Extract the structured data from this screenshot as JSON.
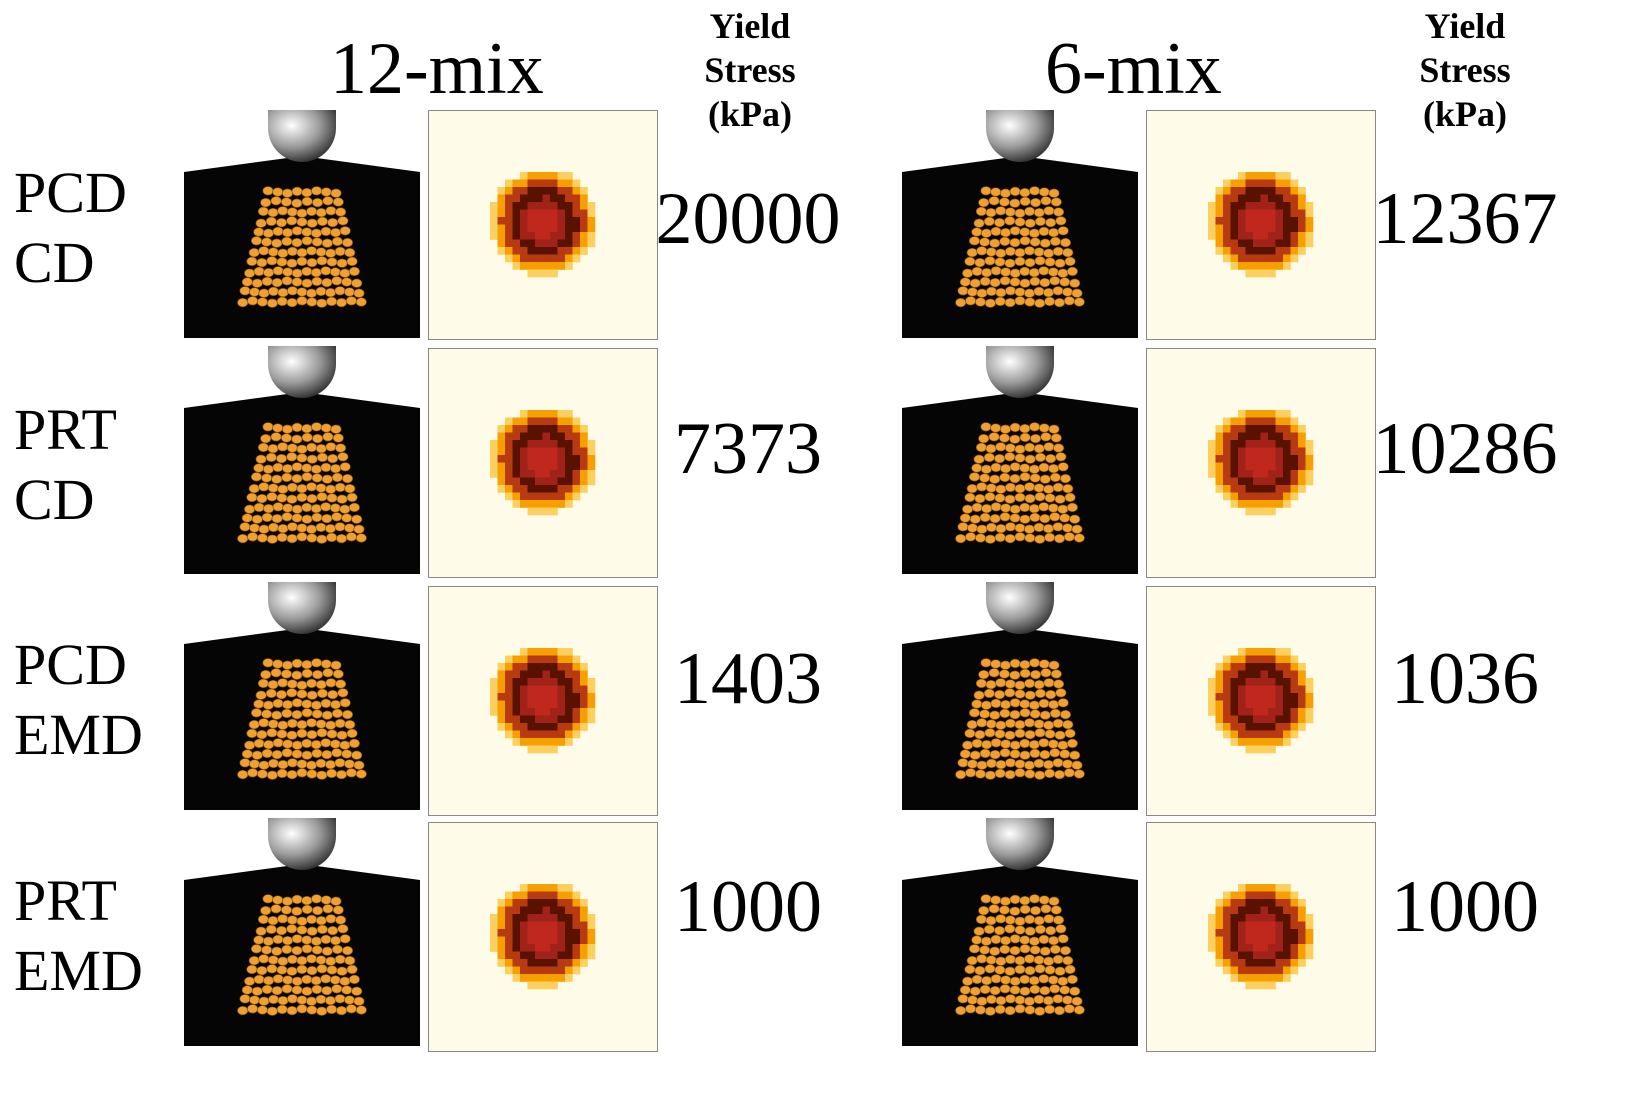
{
  "groups": [
    {
      "title": "12-mix",
      "header": [
        "Yield",
        "Stress",
        "(kPa)"
      ]
    },
    {
      "title": "6-mix",
      "header": [
        "Yield",
        "Stress",
        "(kPa)"
      ]
    }
  ],
  "rows": [
    {
      "label": [
        "PCD",
        "CD"
      ],
      "values": [
        "20000",
        "12367"
      ]
    },
    {
      "label": [
        "PRT",
        "CD"
      ],
      "values": [
        "7373",
        "10286"
      ]
    },
    {
      "label": [
        "PCD",
        "EMD"
      ],
      "values": [
        "1403",
        "1036"
      ]
    },
    {
      "label": [
        "PRT",
        "EMD"
      ],
      "values": [
        "1000",
        "1000"
      ]
    }
  ],
  "colors": {
    "background": "#ffffff",
    "scene": "#050505",
    "particles": "#f0a030",
    "heatmap_bg": "#fefbe8",
    "heat_outer": "#f6a000",
    "heat_ring": "#5a1200",
    "heat_core": "#c0281e"
  }
}
